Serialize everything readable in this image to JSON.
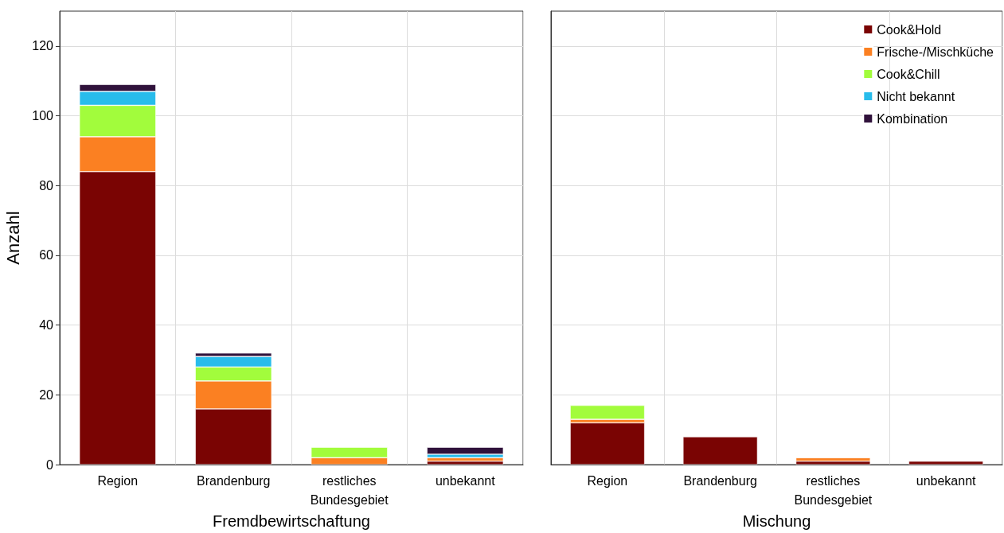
{
  "chart_data": [
    {
      "type": "bar",
      "stacked": true,
      "xlabel": "Fremdbewirtschaftung",
      "ylabel": "Anzahl",
      "categories": [
        "Region",
        "Brandenburg",
        "restliches\nBundesgebiet",
        "unbekannt"
      ],
      "series": [
        {
          "name": "Cook&Hold",
          "color": "#7a0403",
          "values": [
            84,
            16,
            0,
            1
          ]
        },
        {
          "name": "Frische-/Mischküche",
          "color": "#fb8022",
          "values": [
            10,
            8,
            2,
            1
          ]
        },
        {
          "name": "Cook&Chill",
          "color": "#a2fc3c",
          "values": [
            9,
            4,
            3,
            0
          ]
        },
        {
          "name": "Nicht bekannt",
          "color": "#28bceb",
          "values": [
            4,
            3,
            0,
            1
          ]
        },
        {
          "name": "Kombination",
          "color": "#30123b",
          "values": [
            2,
            1,
            0,
            2
          ]
        }
      ],
      "ylim": [
        0,
        130
      ],
      "yticks": [
        0,
        20,
        40,
        60,
        80,
        100,
        120
      ],
      "grid": true,
      "legend": "top right"
    },
    {
      "type": "bar",
      "stacked": true,
      "xlabel": "Mischung",
      "categories": [
        "Region",
        "Brandenburg",
        "restliches\nBundesgebiet",
        "unbekannt"
      ],
      "series": [
        {
          "color": "#7a0403",
          "values": [
            12,
            8,
            1,
            1
          ]
        },
        {
          "color": "#fb8022",
          "values": [
            1,
            0,
            1,
            0
          ]
        },
        {
          "color": "#a2fc3c",
          "values": [
            4,
            0,
            0,
            0
          ]
        },
        {
          "color": "#28bceb",
          "values": [
            0,
            0,
            0,
            0
          ]
        },
        {
          "color": "#30123b",
          "values": [
            0,
            0,
            0,
            0
          ]
        }
      ],
      "ylim": [
        0,
        130
      ],
      "yticks": [
        0,
        20,
        40,
        60,
        80,
        100,
        120
      ],
      "grid": true,
      "tick_labels": "x"
    }
  ]
}
